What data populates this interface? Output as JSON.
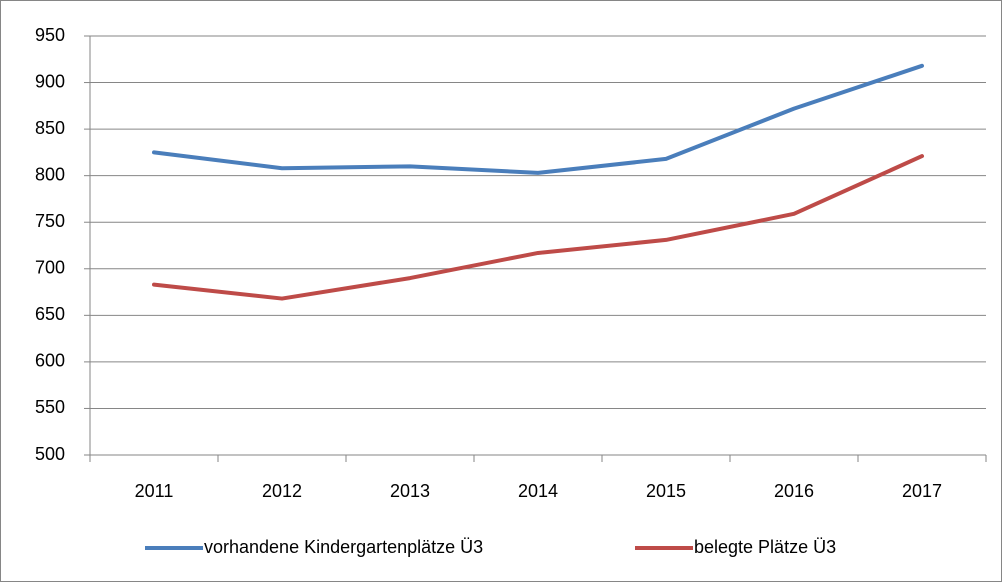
{
  "chart_data": {
    "type": "line",
    "categories": [
      "2011",
      "2012",
      "2013",
      "2014",
      "2015",
      "2016",
      "2017"
    ],
    "series": [
      {
        "name": "vorhandene Kindergartenplätze Ü3",
        "color": "#4a7ebb",
        "values": [
          825,
          808,
          810,
          803,
          818,
          872,
          918
        ]
      },
      {
        "name": "belegte Plätze Ü3",
        "color": "#be4b48",
        "values": [
          683,
          668,
          690,
          717,
          731,
          759,
          821
        ]
      }
    ],
    "ylim": [
      500,
      950
    ],
    "yticks": [
      500,
      550,
      600,
      650,
      700,
      750,
      800,
      850,
      900,
      950
    ],
    "grid": true,
    "legend": "bottom"
  }
}
